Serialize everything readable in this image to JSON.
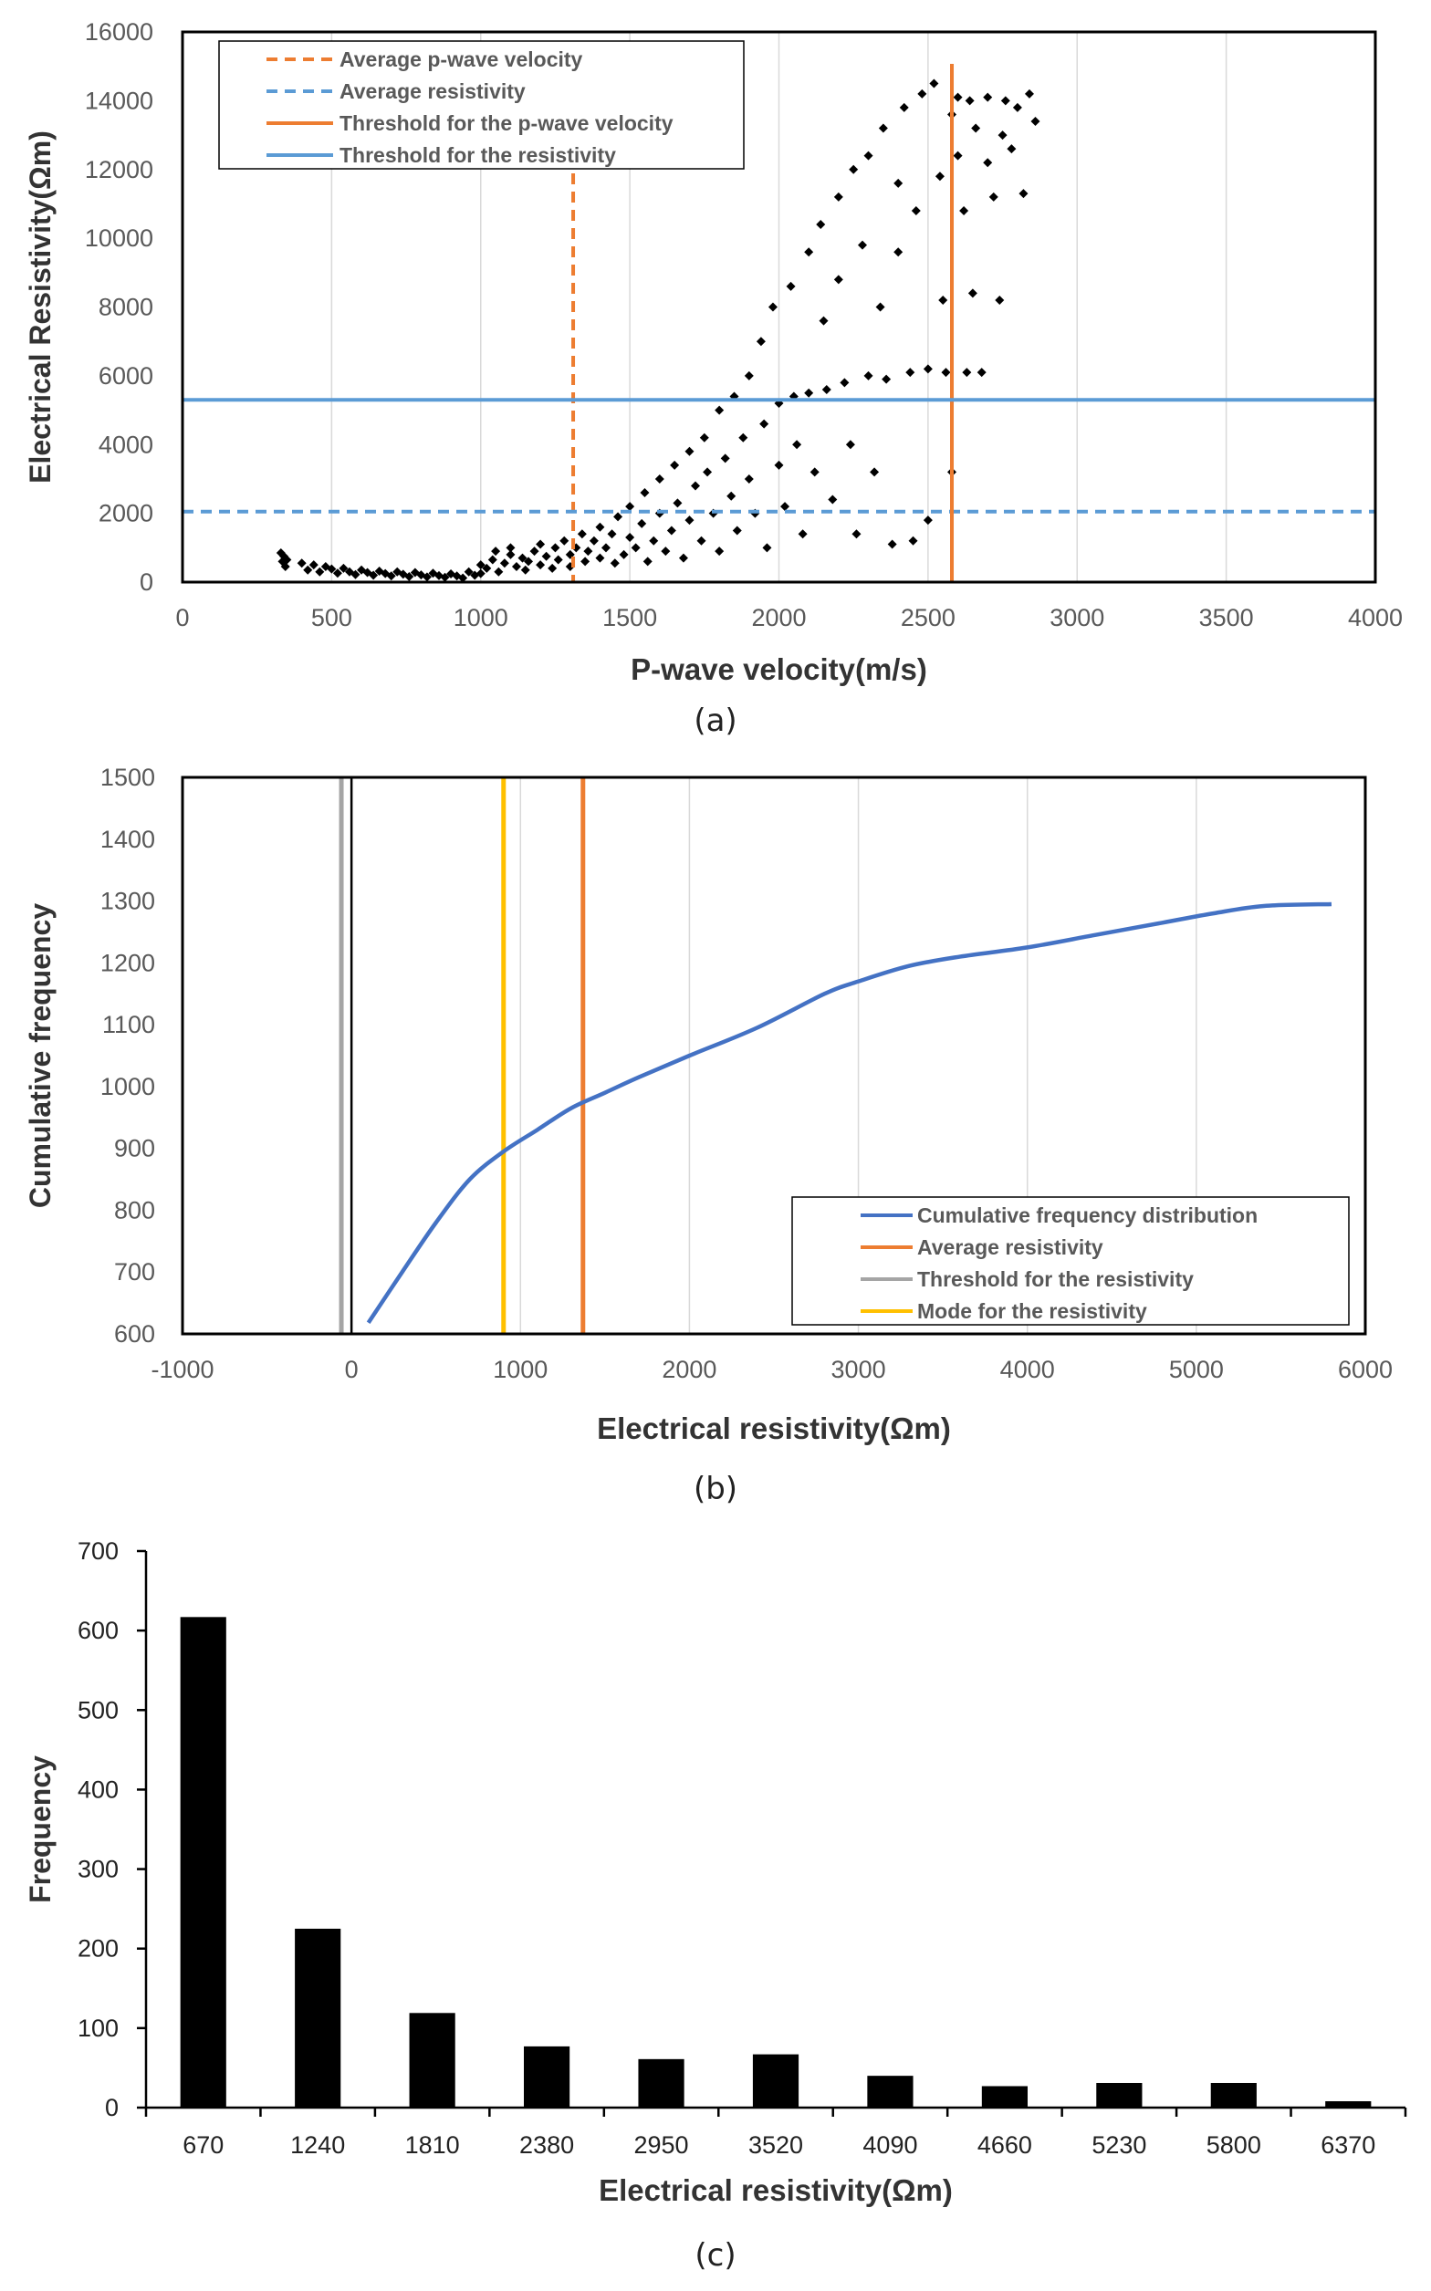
{
  "chart_data": [
    {
      "id": "a",
      "type": "scatter",
      "caption": "(a)",
      "xlabel": "P-wave velocity(m/s)",
      "ylabel": "Electrical Resistivity(Ωm)",
      "xlim": [
        0,
        4000
      ],
      "ylim": [
        0,
        16000
      ],
      "xticks": [
        0,
        500,
        1000,
        1500,
        2000,
        2500,
        3000,
        3500,
        4000
      ],
      "yticks": [
        0,
        2000,
        4000,
        6000,
        8000,
        10000,
        12000,
        14000,
        16000
      ],
      "grid": "vertical",
      "legend_position": "top-left",
      "reference_lines": [
        {
          "name": "Average p-wave velocity",
          "orientation": "vertical",
          "value": 1310,
          "color": "#ED7D31",
          "style": "dashed"
        },
        {
          "name": "Average resistivity",
          "orientation": "horizontal",
          "value": 2050,
          "color": "#5B9BD5",
          "style": "dashed"
        },
        {
          "name": "Threshold for the p-wave velocity",
          "orientation": "vertical",
          "value": 2580,
          "color": "#ED7D31",
          "style": "solid"
        },
        {
          "name": "Threshold for the resistivity",
          "orientation": "horizontal",
          "value": 5300,
          "color": "#5B9BD5",
          "style": "solid"
        }
      ],
      "points": [
        [
          330,
          850
        ],
        [
          335,
          600
        ],
        [
          340,
          750
        ],
        [
          345,
          450
        ],
        [
          350,
          650
        ],
        [
          400,
          550
        ],
        [
          420,
          350
        ],
        [
          440,
          500
        ],
        [
          460,
          300
        ],
        [
          480,
          450
        ],
        [
          500,
          380
        ],
        [
          520,
          260
        ],
        [
          540,
          400
        ],
        [
          560,
          300
        ],
        [
          580,
          220
        ],
        [
          600,
          350
        ],
        [
          620,
          280
        ],
        [
          640,
          200
        ],
        [
          660,
          320
        ],
        [
          680,
          250
        ],
        [
          700,
          180
        ],
        [
          720,
          300
        ],
        [
          740,
          230
        ],
        [
          760,
          160
        ],
        [
          780,
          280
        ],
        [
          800,
          210
        ],
        [
          820,
          150
        ],
        [
          840,
          260
        ],
        [
          860,
          190
        ],
        [
          880,
          140
        ],
        [
          900,
          240
        ],
        [
          920,
          180
        ],
        [
          940,
          120
        ],
        [
          960,
          300
        ],
        [
          980,
          200
        ],
        [
          1000,
          250
        ],
        [
          1000,
          500
        ],
        [
          1020,
          400
        ],
        [
          1040,
          650
        ],
        [
          1050,
          900
        ],
        [
          1060,
          300
        ],
        [
          1080,
          550
        ],
        [
          1100,
          800
        ],
        [
          1100,
          1000
        ],
        [
          1120,
          450
        ],
        [
          1140,
          700
        ],
        [
          1150,
          350
        ],
        [
          1160,
          600
        ],
        [
          1180,
          900
        ],
        [
          1200,
          500
        ],
        [
          1200,
          1100
        ],
        [
          1220,
          750
        ],
        [
          1240,
          400
        ],
        [
          1250,
          1000
        ],
        [
          1260,
          650
        ],
        [
          1280,
          1200
        ],
        [
          1300,
          800
        ],
        [
          1300,
          450
        ],
        [
          1320,
          1000
        ],
        [
          1340,
          1400
        ],
        [
          1350,
          600
        ],
        [
          1360,
          900
        ],
        [
          1380,
          1200
        ],
        [
          1400,
          1600
        ],
        [
          1400,
          700
        ],
        [
          1420,
          1000
        ],
        [
          1440,
          1400
        ],
        [
          1450,
          550
        ],
        [
          1460,
          1900
        ],
        [
          1480,
          800
        ],
        [
          1500,
          1300
        ],
        [
          1500,
          2200
        ],
        [
          1520,
          1000
        ],
        [
          1540,
          1700
        ],
        [
          1550,
          2600
        ],
        [
          1560,
          600
        ],
        [
          1580,
          1200
        ],
        [
          1600,
          3000
        ],
        [
          1600,
          2000
        ],
        [
          1620,
          900
        ],
        [
          1640,
          1500
        ],
        [
          1650,
          3400
        ],
        [
          1660,
          2300
        ],
        [
          1680,
          700
        ],
        [
          1700,
          1800
        ],
        [
          1700,
          3800
        ],
        [
          1720,
          2800
        ],
        [
          1740,
          1200
        ],
        [
          1750,
          4200
        ],
        [
          1760,
          3200
        ],
        [
          1780,
          2000
        ],
        [
          1800,
          5000
        ],
        [
          1800,
          900
        ],
        [
          1820,
          3600
        ],
        [
          1840,
          2500
        ],
        [
          1850,
          5400
        ],
        [
          1860,
          1500
        ],
        [
          1880,
          4200
        ],
        [
          1900,
          6000
        ],
        [
          1900,
          3000
        ],
        [
          1920,
          2000
        ],
        [
          1940,
          7000
        ],
        [
          1950,
          4600
        ],
        [
          1960,
          1000
        ],
        [
          1980,
          8000
        ],
        [
          2000,
          5200
        ],
        [
          2000,
          3400
        ],
        [
          2020,
          2200
        ],
        [
          2040,
          8600
        ],
        [
          2050,
          5400
        ],
        [
          2060,
          4000
        ],
        [
          2080,
          1400
        ],
        [
          2100,
          9600
        ],
        [
          2100,
          5500
        ],
        [
          2120,
          3200
        ],
        [
          2140,
          10400
        ],
        [
          2150,
          7600
        ],
        [
          2160,
          5600
        ],
        [
          2180,
          2400
        ],
        [
          2200,
          11200
        ],
        [
          2200,
          8800
        ],
        [
          2220,
          5800
        ],
        [
          2240,
          4000
        ],
        [
          2250,
          12000
        ],
        [
          2260,
          1400
        ],
        [
          2280,
          9800
        ],
        [
          2300,
          6000
        ],
        [
          2300,
          12400
        ],
        [
          2320,
          3200
        ],
        [
          2340,
          8000
        ],
        [
          2350,
          13200
        ],
        [
          2360,
          5900
        ],
        [
          2380,
          1100
        ],
        [
          2400,
          11600
        ],
        [
          2400,
          9600
        ],
        [
          2420,
          13800
        ],
        [
          2440,
          6100
        ],
        [
          2450,
          1200
        ],
        [
          2460,
          10800
        ],
        [
          2480,
          14200
        ],
        [
          2500,
          6200
        ],
        [
          2500,
          1800
        ],
        [
          2520,
          14500
        ],
        [
          2540,
          11800
        ],
        [
          2550,
          8200
        ],
        [
          2560,
          6100
        ],
        [
          2580,
          13600
        ],
        [
          2580,
          3200
        ],
        [
          2600,
          14100
        ],
        [
          2600,
          12400
        ],
        [
          2620,
          10800
        ],
        [
          2630,
          6100
        ],
        [
          2640,
          14000
        ],
        [
          2650,
          8400
        ],
        [
          2660,
          13200
        ],
        [
          2680,
          6100
        ],
        [
          2700,
          12200
        ],
        [
          2700,
          14100
        ],
        [
          2720,
          11200
        ],
        [
          2740,
          8200
        ],
        [
          2750,
          13000
        ],
        [
          2760,
          14000
        ],
        [
          2780,
          12600
        ],
        [
          2800,
          13800
        ],
        [
          2820,
          11300
        ],
        [
          2840,
          14200
        ],
        [
          2860,
          13400
        ]
      ],
      "series_color": "#000000"
    },
    {
      "id": "b",
      "type": "line",
      "caption": "(b)",
      "xlabel": "Electrical resistivity(Ωm)",
      "ylabel": "Cumulative frequency",
      "xlim": [
        -1000,
        6000
      ],
      "ylim": [
        600,
        1500
      ],
      "xticks": [
        -1000,
        0,
        1000,
        2000,
        3000,
        4000,
        5000,
        6000
      ],
      "yticks": [
        600,
        700,
        800,
        900,
        1000,
        1100,
        1200,
        1300,
        1400,
        1500
      ],
      "grid": "vertical",
      "legend_position": "bottom-right",
      "series": [
        {
          "name": "Cumulative frequency distribution",
          "color": "#4472C4",
          "x": [
            100,
            300,
            500,
            700,
            900,
            1100,
            1300,
            1500,
            1700,
            2000,
            2400,
            2800,
            3000,
            3300,
            3600,
            4000,
            4400,
            4800,
            5100,
            5400,
            5800
          ],
          "y": [
            618,
            700,
            780,
            850,
            895,
            930,
            965,
            990,
            1015,
            1050,
            1095,
            1150,
            1170,
            1195,
            1210,
            1225,
            1245,
            1265,
            1280,
            1292,
            1295
          ]
        }
      ],
      "reference_lines": [
        {
          "name": "Average resistivity",
          "orientation": "vertical",
          "value": 1370,
          "color": "#ED7D31",
          "style": "solid"
        },
        {
          "name": "Threshold for the resistivity",
          "orientation": "vertical",
          "value": -60,
          "color": "#A5A5A5",
          "style": "solid"
        },
        {
          "name": "Mode for the resistivity",
          "orientation": "vertical",
          "value": 900,
          "color": "#FFC000",
          "style": "solid"
        }
      ]
    },
    {
      "id": "c",
      "type": "bar",
      "caption": "(c)",
      "xlabel": "Electrical resistivity(Ωm)",
      "ylabel": "Frequency",
      "ylim": [
        0,
        700
      ],
      "yticks": [
        0,
        100,
        200,
        300,
        400,
        500,
        600,
        700
      ],
      "categories": [
        "670",
        "1240",
        "1810",
        "2380",
        "2950",
        "3520",
        "4090",
        "4660",
        "5230",
        "5800",
        "6370"
      ],
      "values": [
        617,
        225,
        119,
        77,
        61,
        67,
        40,
        27,
        31,
        31,
        8
      ],
      "bar_color": "#000000",
      "grid": "none"
    }
  ]
}
